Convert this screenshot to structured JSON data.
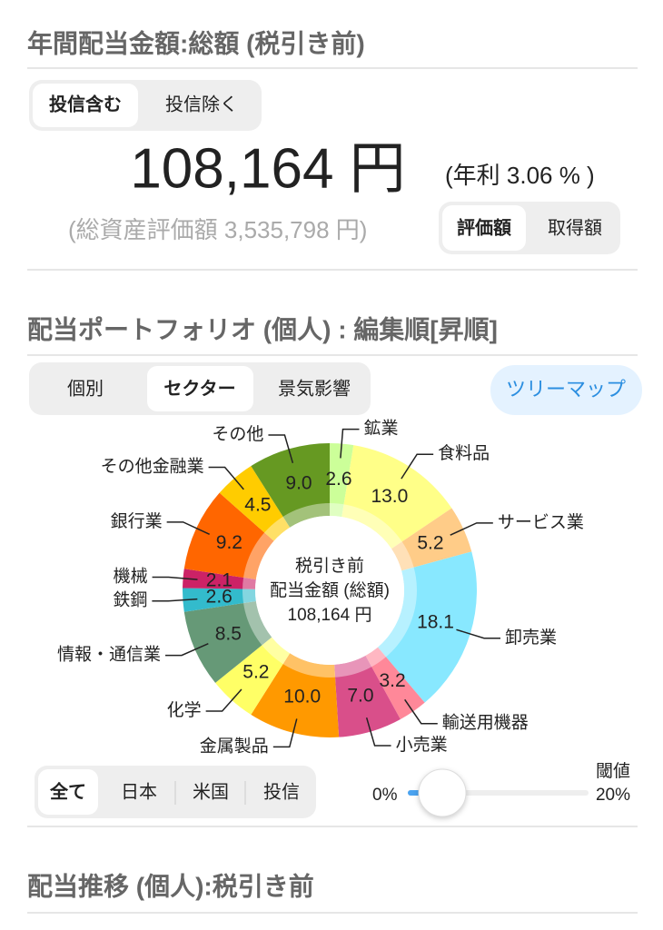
{
  "header": {
    "title": "年間配当金額:総額 (税引き前)"
  },
  "summary": {
    "tabs": [
      "投信含む",
      "投信除く"
    ],
    "amount": "108,164 円",
    "yield": "(年利 3.06 % )",
    "assets": "(総資産評価額 3,535,798 円)",
    "basis_tabs": [
      "評価額",
      "取得額"
    ]
  },
  "portfolio": {
    "title": "配当ポートフォリオ (個人) : 編集順[昇順]",
    "tabs": [
      "個別",
      "セクター",
      "景気影響"
    ],
    "treemap_button": "ツリーマップ"
  },
  "chart_data": {
    "type": "pie",
    "donut": true,
    "categories": [
      "鉱業",
      "食料品",
      "サービス業",
      "卸売業",
      "輸送用機器",
      "小売業",
      "金属製品",
      "化学",
      "情報・通信業",
      "鉄鋼",
      "機械",
      "銀行業",
      "その他金融業",
      "その他"
    ],
    "values": [
      2.6,
      13.0,
      5.2,
      18.1,
      3.2,
      7.0,
      10.0,
      5.2,
      8.5,
      2.6,
      2.1,
      9.2,
      4.5,
      9.0
    ],
    "value_labels": [
      "2.6",
      "13.0",
      "5.2",
      "18.1",
      "3.2",
      "7.0",
      "10.0",
      "5.2",
      "8.5",
      "2.6",
      "2.1",
      "9.2",
      "4.5",
      "9.0"
    ],
    "colors": [
      "#ccff99",
      "#ffff88",
      "#ffcc88",
      "#88e8ff",
      "#ff8899",
      "#d94f8a",
      "#ff9900",
      "#ffff66",
      "#669977",
      "#33bbcc",
      "#cc2266",
      "#ff6600",
      "#ffcc00",
      "#669922"
    ],
    "center_text": [
      "税引き前",
      "配当金額 (総額)",
      "108,164 円"
    ]
  },
  "filters": {
    "tabs": [
      "全て",
      "日本",
      "米国",
      "投信"
    ],
    "threshold_label": "閾値",
    "threshold_min": "0%",
    "threshold_max": "20%"
  },
  "history": {
    "title": "配当推移 (個人):税引き前"
  }
}
